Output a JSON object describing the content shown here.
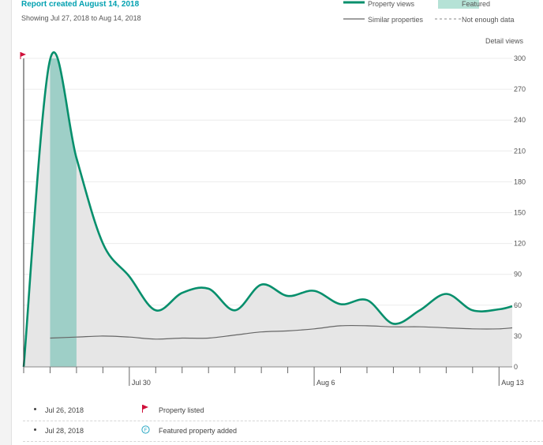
{
  "header": {
    "report_title": "Report created August 14, 2018",
    "showing": "Showing Jul 27, 2018 to Aug 14, 2018"
  },
  "legend": {
    "property_views": "Property views",
    "featured": "Featured",
    "similar": "Similar properties",
    "not_enough": "Not enough data"
  },
  "colors": {
    "property_views": "#068f6c",
    "featured_fill": "#9ecfc7",
    "area_fill": "#e6e6e6",
    "similar": "#666666",
    "flag": "#d0103a"
  },
  "events": [
    {
      "date": "Jul 26, 2018",
      "icon": "flag-icon",
      "label": "Property listed"
    },
    {
      "date": "Jul 28, 2018",
      "icon": "featured-icon",
      "label": "Featured property added"
    }
  ],
  "chart_data": {
    "type": "area",
    "ylabel": "Detail views",
    "ylim": [
      0,
      300
    ],
    "yticks": [
      0,
      30,
      60,
      90,
      120,
      150,
      180,
      210,
      240,
      270,
      300
    ],
    "xlim": [
      -0.25,
      18.25
    ],
    "xtick_labels": [
      {
        "x": 4,
        "label": "Jul 30"
      },
      {
        "x": 11,
        "label": "Aug 6"
      },
      {
        "x": 18,
        "label": "Aug 13"
      }
    ],
    "featured_range": [
      0.75,
      1.75
    ],
    "series": [
      {
        "name": "Property views",
        "x": [
          -0.25,
          0.75,
          1.75,
          2.75,
          3.75,
          4.75,
          5.75,
          6.75,
          7.75,
          8.75,
          9.75,
          10.75,
          11.75,
          12.75,
          13.75,
          14.75,
          15.75,
          16.75,
          17.75,
          18.25
        ],
        "values": [
          0,
          299,
          203,
          120,
          88,
          55,
          72,
          76,
          55,
          80,
          69,
          74,
          61,
          65,
          42,
          55,
          71,
          55,
          56,
          59
        ]
      },
      {
        "name": "Similar properties",
        "x": [
          0.75,
          1.75,
          2.75,
          3.75,
          4.75,
          5.75,
          6.75,
          7.75,
          8.75,
          9.75,
          10.75,
          11.75,
          12.75,
          13.75,
          14.75,
          15.75,
          16.75,
          17.75,
          18.25
        ],
        "values": [
          28,
          29,
          30,
          29,
          27,
          28,
          28,
          31,
          34,
          35,
          37,
          40,
          40,
          39,
          39,
          38,
          37,
          37,
          38
        ]
      }
    ]
  }
}
